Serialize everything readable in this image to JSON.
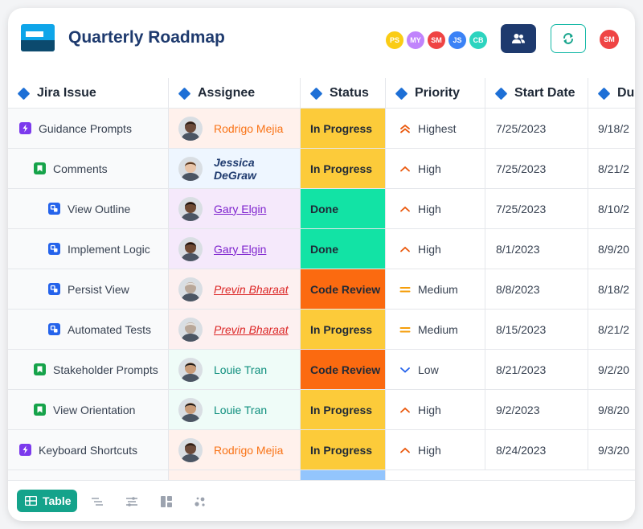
{
  "app": {
    "title": "Quarterly Roadmap"
  },
  "collaborators": [
    {
      "initials": "PS",
      "color": "#facc15"
    },
    {
      "initials": "MY",
      "color": "#c084fc"
    },
    {
      "initials": "SM",
      "color": "#ef4444"
    },
    {
      "initials": "JS",
      "color": "#3b82f6"
    },
    {
      "initials": "CB",
      "color": "#2dd4bf"
    }
  ],
  "current_user": {
    "initials": "SM",
    "color": "#ef4444"
  },
  "columns": [
    "Jira Issue",
    "Assignee",
    "Status",
    "Priority",
    "Start Date",
    "Du"
  ],
  "rows": [
    {
      "issue": "Guidance Prompts",
      "type": "epic",
      "indent": 0,
      "assignee": "Rodrigo Mejia",
      "assignee_style": "orange",
      "status": "In Progress",
      "priority": "Highest",
      "start": "7/25/2023",
      "due": "9/18/2"
    },
    {
      "issue": "Comments",
      "type": "story",
      "indent": 1,
      "assignee": "Jessica DeGraw",
      "assignee_style": "navy",
      "status": "In Progress",
      "priority": "High",
      "start": "7/25/2023",
      "due": "8/21/2"
    },
    {
      "issue": "View Outline",
      "type": "subtask",
      "indent": 2,
      "assignee": "Gary Elgin",
      "assignee_style": "purple",
      "status": "Done",
      "priority": "High",
      "start": "7/25/2023",
      "due": "8/10/2"
    },
    {
      "issue": "Implement Logic",
      "type": "subtask",
      "indent": 2,
      "assignee": "Gary Elgin",
      "assignee_style": "purple",
      "status": "Done",
      "priority": "High",
      "start": "8/1/2023",
      "due": "8/9/20"
    },
    {
      "issue": "Persist View",
      "type": "subtask",
      "indent": 2,
      "assignee": "Previn Bharaat",
      "assignee_style": "red",
      "status": "Code Review",
      "priority": "Medium",
      "start": "8/8/2023",
      "due": "8/18/2"
    },
    {
      "issue": "Automated Tests",
      "type": "subtask",
      "indent": 2,
      "assignee": "Previn Bharaat",
      "assignee_style": "red",
      "status": "In Progress",
      "priority": "Medium",
      "start": "8/15/2023",
      "due": "8/21/2"
    },
    {
      "issue": "Stakeholder Prompts",
      "type": "story",
      "indent": 1,
      "assignee": "Louie Tran",
      "assignee_style": "teal",
      "status": "Code Review",
      "priority": "Low",
      "start": "8/21/2023",
      "due": "9/2/20"
    },
    {
      "issue": "View Orientation",
      "type": "story",
      "indent": 1,
      "assignee": "Louie Tran",
      "assignee_style": "teal",
      "status": "In Progress",
      "priority": "High",
      "start": "9/2/2023",
      "due": "9/8/20"
    },
    {
      "issue": "Keyboard Shortcuts",
      "type": "epic",
      "indent": 0,
      "assignee": "Rodrigo Mejia",
      "assignee_style": "orange",
      "status": "In Progress",
      "priority": "High",
      "start": "8/24/2023",
      "due": "9/3/20"
    }
  ],
  "styles": {
    "status_colors": {
      "In Progress": "#fccb3a",
      "Done": "#12e3a5",
      "Code Review": "#fb6a10"
    },
    "assignee": {
      "orange": {
        "bg": "#fff1ec",
        "color": "#f97316",
        "italic": false,
        "underline": false,
        "bold": false
      },
      "navy": {
        "bg": "#eef6ff",
        "color": "#1e3a6e",
        "italic": true,
        "underline": false,
        "bold": true
      },
      "purple": {
        "bg": "#f5e9fb",
        "color": "#7e22ce",
        "italic": false,
        "underline": true,
        "bold": false
      },
      "red": {
        "bg": "#fdf0f0",
        "color": "#dc2626",
        "italic": true,
        "underline": true,
        "bold": false
      },
      "teal": {
        "bg": "#effcf8",
        "color": "#0f8f7e",
        "italic": false,
        "underline": false,
        "bold": false
      }
    },
    "priority_colors": {
      "Highest": "#ea580c",
      "High": "#ea580c",
      "Medium": "#f59e0b",
      "Low": "#2563eb"
    },
    "type_colors": {
      "epic": "#7c3aed",
      "story": "#16a34a",
      "subtask": "#2563eb"
    }
  },
  "footer": {
    "active_tab": "Table"
  }
}
